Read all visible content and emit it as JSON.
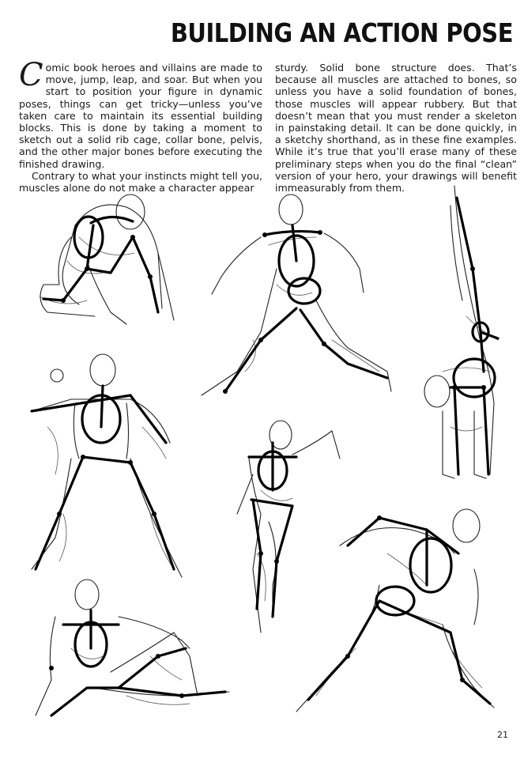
{
  "page": {
    "title": "BUILDING AN ACTION POSE",
    "page_number": "21"
  },
  "text": {
    "dropcap": "C",
    "left_p1": "omic book heroes and villains are made to move, jump, leap, and soar. But when you start to position your figure in dynamic poses, things can get tricky—unless you’ve taken care to maintain its essential building blocks. This is done by taking a moment to sketch out a solid rib cage, collar bone, pelvis, and the other major bones before executing the finished drawing.",
    "left_p2": "Contrary to what your instincts might tell you, muscles alone do not make a character appear",
    "right_p1": "sturdy. Solid bone structure does. That’s because all muscles are attached to bones, so unless you have a solid foundation of bones, those muscles will appear rubbery. But that doesn’t mean that you must render a skeleton in painstaking detail. It can be done quickly, in a sketchy shorthand, as in these fine examples. While it’s true that you’ll erase many of these preliminary steps when you do the final “clean” version of your hero, your drawings will benefit immeasurably from them."
  },
  "illustrations": [
    {
      "id": "crouching-figure"
    },
    {
      "id": "leaping-figure"
    },
    {
      "id": "handstand-figure"
    },
    {
      "id": "throwing-figure"
    },
    {
      "id": "running-figure-small"
    },
    {
      "id": "running-figure-large"
    },
    {
      "id": "reclining-figure"
    }
  ],
  "colors": {
    "ink": "#000000",
    "paper": "#ffffff"
  }
}
